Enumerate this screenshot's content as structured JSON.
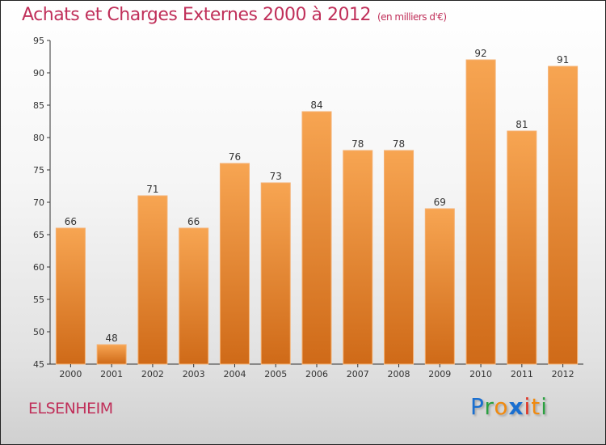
{
  "chart_data": {
    "type": "bar",
    "title": "Achats et Charges Externes 2000 à 2012",
    "unit": "(en milliers d'€)",
    "categories": [
      "2000",
      "2001",
      "2002",
      "2003",
      "2004",
      "2005",
      "2006",
      "2007",
      "2008",
      "2009",
      "2010",
      "2011",
      "2012"
    ],
    "values": [
      66,
      48,
      71,
      66,
      76,
      73,
      84,
      78,
      78,
      69,
      92,
      81,
      91
    ],
    "ylim": [
      45,
      95
    ],
    "yticks": [
      45,
      50,
      55,
      60,
      65,
      70,
      75,
      80,
      85,
      90,
      95
    ],
    "xlabel": "",
    "ylabel": "",
    "grid": false,
    "bar_color": "#f0902f"
  },
  "commune": "ELSENHEIM",
  "logo": "Proxiti"
}
